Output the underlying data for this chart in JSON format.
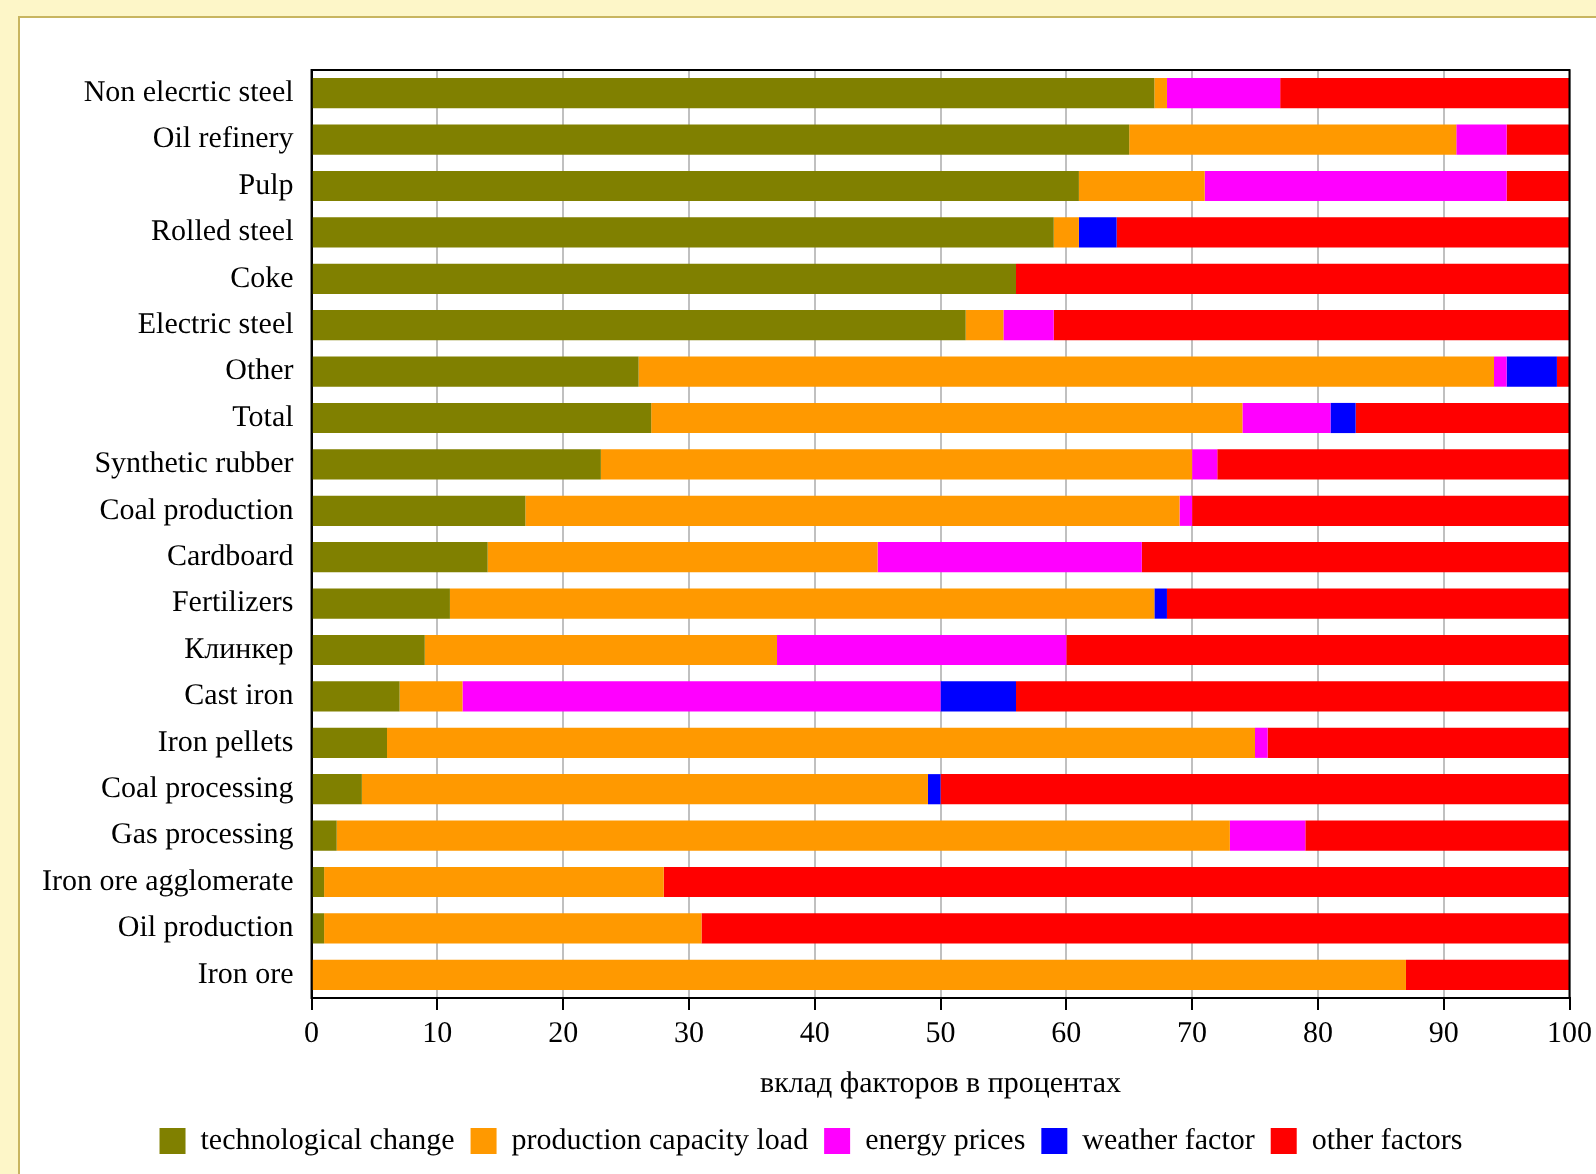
{
  "chart_data": {
    "type": "bar",
    "orientation": "horizontal",
    "stacked": true,
    "xlabel": "вклад факторов в процентах",
    "categories": [
      "Non elecrtic steel",
      "Oil refinery",
      "Pulp",
      "Rolled steel",
      "Coke",
      "Electric steel",
      "Other",
      "Total",
      "Synthetic rubber",
      "Coal production",
      "Cardboard",
      "Fertilizers",
      "Клинкер",
      "Cast iron",
      "Iron pellets",
      "Coal processing",
      "Gas processing",
      "Iron ore agglomerate",
      "Oil production",
      "Iron ore"
    ],
    "series": [
      {
        "name": "technological change",
        "color": "#808000",
        "values": [
          67,
          65,
          61,
          59,
          56,
          52,
          26,
          27,
          23,
          17,
          14,
          11,
          9,
          7,
          6,
          4,
          2,
          1,
          1,
          0
        ]
      },
      {
        "name": "production capacity load",
        "color": "#ff9900",
        "values": [
          1,
          26,
          10,
          2,
          0,
          3,
          68,
          47,
          47,
          52,
          31,
          56,
          28,
          5,
          69,
          45,
          71,
          27,
          30,
          87
        ]
      },
      {
        "name": "energy prices",
        "color": "#ff00ff",
        "values": [
          9,
          4,
          24,
          0,
          0,
          4,
          1,
          7,
          2,
          1,
          21,
          0,
          23,
          38,
          1,
          0,
          6,
          0,
          0,
          0
        ]
      },
      {
        "name": "weather factor",
        "color": "#0000ff",
        "values": [
          0,
          0,
          0,
          3,
          0,
          0,
          4,
          2,
          0,
          0,
          0,
          1,
          0,
          6,
          0,
          1,
          0,
          0,
          0,
          0
        ]
      },
      {
        "name": "other factors",
        "color": "#ff0000",
        "values": [
          23,
          5,
          5,
          36,
          44,
          41,
          1,
          17,
          28,
          30,
          34,
          32,
          40,
          44,
          24,
          50,
          21,
          72,
          69,
          13
        ]
      }
    ],
    "xlim": [
      0,
      100
    ],
    "xticks": [
      0,
      10,
      20,
      30,
      40,
      50,
      60,
      70,
      80,
      90,
      100
    ],
    "grid": "x",
    "legend": "bottom"
  }
}
